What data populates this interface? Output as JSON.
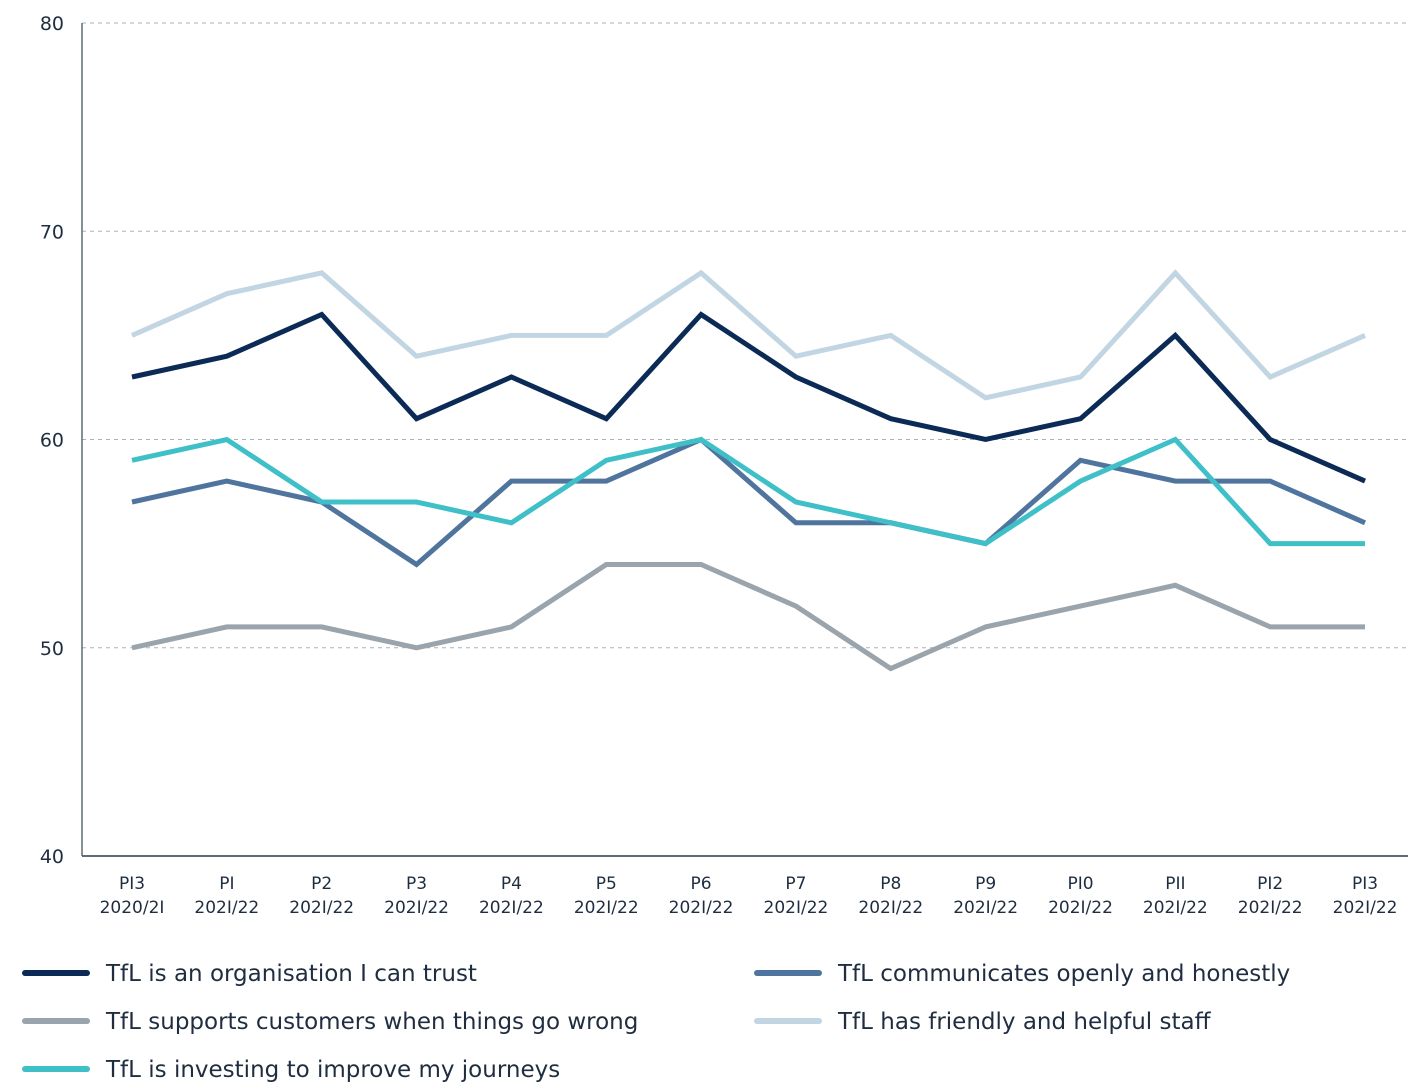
{
  "chart_data": {
    "type": "line",
    "title": "",
    "xlabel": "",
    "ylabel": "",
    "ylim": [
      40,
      80
    ],
    "yticks": [
      40,
      50,
      60,
      70,
      80
    ],
    "grid": true,
    "legend_position": "bottom",
    "categories": [
      [
        "PI3",
        "2020/2I"
      ],
      [
        "PI",
        "202I/22"
      ],
      [
        "P2",
        "202I/22"
      ],
      [
        "P3",
        "202I/22"
      ],
      [
        "P4",
        "202I/22"
      ],
      [
        "P5",
        "202I/22"
      ],
      [
        "P6",
        "202I/22"
      ],
      [
        "P7",
        "202I/22"
      ],
      [
        "P8",
        "202I/22"
      ],
      [
        "P9",
        "202I/22"
      ],
      [
        "PI0",
        "202I/22"
      ],
      [
        "PII",
        "202I/22"
      ],
      [
        "PI2",
        "202I/22"
      ],
      [
        "PI3",
        "202I/22"
      ]
    ],
    "series": [
      {
        "name": "TfL is an organisation I can trust",
        "color": "#0b2a55",
        "values": [
          63,
          64,
          66,
          61,
          63,
          61,
          66,
          63,
          61,
          60,
          61,
          65,
          60,
          58
        ]
      },
      {
        "name": "TfL communicates openly and honestly",
        "color": "#4f749d",
        "values": [
          57,
          58,
          57,
          54,
          58,
          58,
          60,
          56,
          56,
          55,
          59,
          58,
          58,
          56
        ]
      },
      {
        "name": "TfL supports customers when things go wrong",
        "color": "#9aa4ac",
        "values": [
          50,
          51,
          51,
          50,
          51,
          54,
          54,
          52,
          49,
          51,
          52,
          53,
          51,
          51
        ]
      },
      {
        "name": "TfL has friendly and helpful staff",
        "color": "#c2d5e3",
        "values": [
          65,
          67,
          68,
          64,
          65,
          65,
          68,
          64,
          65,
          62,
          63,
          68,
          63,
          65
        ]
      },
      {
        "name": "TfL is investing to improve my journeys",
        "color": "#3fc0c8",
        "values": [
          59,
          60,
          57,
          57,
          56,
          59,
          60,
          57,
          56,
          55,
          58,
          60,
          55,
          55
        ]
      }
    ],
    "draw_order": [
      2,
      1,
      4,
      3,
      0
    ],
    "legend_order": [
      0,
      1,
      2,
      3,
      4
    ]
  }
}
